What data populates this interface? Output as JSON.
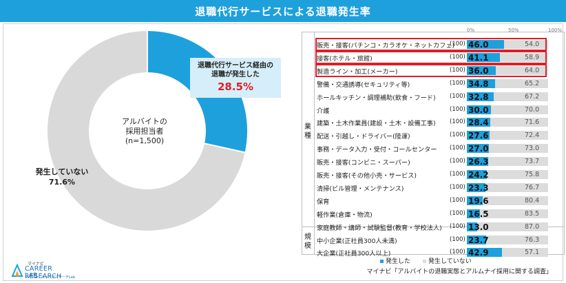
{
  "title": "退職代行サービスによる退職発生率",
  "chart_data": [
    {
      "type": "pie",
      "center_label": [
        "アルバイトの",
        "採用担当者",
        "(n=1,500)"
      ],
      "slices": [
        {
          "label": "退職代行サービス経由の退職が発生した",
          "label_lines": [
            "退職代行サービス経由の",
            "退職が発生した"
          ],
          "value": 28.5,
          "value_text": "28.5%",
          "color": "#1ea0dc"
        },
        {
          "label": "発生していない",
          "value": 71.6,
          "value_text": "71.6%",
          "color": "#d9d9d9"
        }
      ]
    },
    {
      "type": "bar",
      "stacked": true,
      "scale_labels": [
        "0%",
        "50%",
        "100%"
      ],
      "xlim": [
        0,
        100
      ],
      "group_labels": {
        "industry": "業種",
        "size": "規模"
      },
      "series": [
        {
          "name": "発生した",
          "color": "#1ea0dc"
        },
        {
          "name": "発生していない",
          "color": "#dcdcdc"
        }
      ],
      "rows": [
        {
          "label": "販売・接客(パチンコ・カラオケ・ネットカフェ)",
          "n": "(100)",
          "occurred": 46.0,
          "occurred_text": "46.0",
          "not_occurred": 54.0,
          "not_text": "54.0",
          "highlight": true
        },
        {
          "label": "接客(ホテル・旅館)",
          "n": "(100)",
          "occurred": 41.1,
          "occurred_text": "41.1",
          "not_occurred": 58.9,
          "not_text": "58.9",
          "highlight": true
        },
        {
          "label": "製造ライン・加工(メーカー)",
          "n": "(100)",
          "occurred": 36.0,
          "occurred_text": "36.0",
          "not_occurred": 64.0,
          "not_text": "64.0",
          "highlight": true
        },
        {
          "label": "警備・交通誘導(セキュリティ等)",
          "n": "(100)",
          "occurred": 34.8,
          "occurred_text": "34.8",
          "not_occurred": 65.2,
          "not_text": "65.2",
          "highlight": false
        },
        {
          "label": "ホールキッチン・調理補助(飲食・フード)",
          "n": "(100)",
          "occurred": 32.8,
          "occurred_text": "32.8",
          "not_occurred": 67.2,
          "not_text": "67.2",
          "highlight": false
        },
        {
          "label": "介護",
          "n": "(100)",
          "occurred": 30.0,
          "occurred_text": "30.0",
          "not_occurred": 70.0,
          "not_text": "70.0",
          "highlight": false
        },
        {
          "label": "建築・土木作業員(建設・土木・設備工事)",
          "n": "(100)",
          "occurred": 28.4,
          "occurred_text": "28.4",
          "not_occurred": 71.6,
          "not_text": "71.6",
          "highlight": false
        },
        {
          "label": "配送・引越し・ドライバー(陸運)",
          "n": "(100)",
          "occurred": 27.6,
          "occurred_text": "27.6",
          "not_occurred": 72.4,
          "not_text": "72.4",
          "highlight": false
        },
        {
          "label": "事務・データ入力・受付・コールセンター",
          "n": "(100)",
          "occurred": 27.0,
          "occurred_text": "27.0",
          "not_occurred": 73.0,
          "not_text": "73.0",
          "highlight": false
        },
        {
          "label": "販売・接客(コンビニ・スーパー)",
          "n": "(100)",
          "occurred": 26.3,
          "occurred_text": "26.3",
          "not_occurred": 73.7,
          "not_text": "73.7",
          "highlight": false
        },
        {
          "label": "販売・接客(その他小売・サービス)",
          "n": "(100)",
          "occurred": 24.2,
          "occurred_text": "24.2",
          "not_occurred": 75.8,
          "not_text": "75.8",
          "highlight": false
        },
        {
          "label": "清掃(ビル管理・メンテナンス)",
          "n": "(100)",
          "occurred": 23.3,
          "occurred_text": "23.3",
          "not_occurred": 76.7,
          "not_text": "76.7",
          "highlight": false
        },
        {
          "label": "保育",
          "n": "(100)",
          "occurred": 19.6,
          "occurred_text": "19.6",
          "not_occurred": 80.4,
          "not_text": "80.4",
          "highlight": false
        },
        {
          "label": "軽作業(倉庫・物流)",
          "n": "(100)",
          "occurred": 16.5,
          "occurred_text": "16.5",
          "not_occurred": 83.5,
          "not_text": "83.5",
          "highlight": false
        },
        {
          "label": "家庭教師・講師・試験監督(教育・学校法人)",
          "n": "(100)",
          "occurred": 13.0,
          "occurred_text": "13.0",
          "not_occurred": 87.0,
          "not_text": "87.0",
          "highlight": false
        },
        {
          "label": "中小企業(正社員300人未満)",
          "n": "(100)",
          "occurred": 23.7,
          "occurred_text": "23.7",
          "not_occurred": 76.3,
          "not_text": "76.3",
          "highlight": false
        },
        {
          "label": "大企業(正社員300人以上)",
          "n": "(100)",
          "occurred": 42.9,
          "occurred_text": "42.9",
          "not_occurred": 57.1,
          "not_text": "57.1",
          "highlight": false
        }
      ]
    }
  ],
  "legend": {
    "occurred": "発生した",
    "not_occurred": "発生していない"
  },
  "source": "マイナビ「アルバイトの退職実態とアルムナイ採用に関する調査」",
  "logo": {
    "brand_small": "マイナビ",
    "line1": "CAREER RESEARCH",
    "line2": "LAB",
    "sub": "キャリアリサーチLab"
  }
}
